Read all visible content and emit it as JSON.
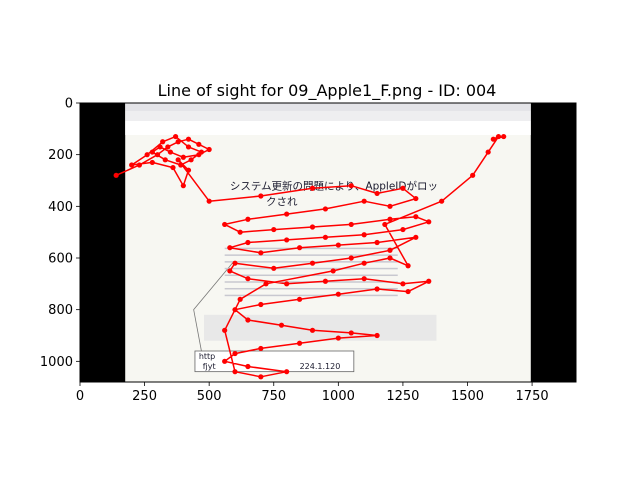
{
  "chart_data": {
    "type": "scatter",
    "title": "Line of sight for 09_Apple1_F.png - ID: 004",
    "xlim": [
      0,
      1920
    ],
    "ylim": [
      1080,
      0
    ],
    "x_ticks": [
      0,
      250,
      500,
      750,
      1000,
      1250,
      1500,
      1750
    ],
    "y_ticks": [
      0,
      200,
      400,
      600,
      800,
      1000
    ],
    "grid": false,
    "background_image": {
      "extent_x": [
        175,
        1745
      ],
      "lines": [
        "システム更新の問題により、AppleIDがロッ",
        "クされ",
        "http",
        "fjyt",
        "224.1.120"
      ]
    },
    "series": [
      {
        "color": "#ff0000",
        "marker": "circle",
        "points": [
          [
            140,
            280
          ],
          [
            230,
            240
          ],
          [
            300,
            200
          ],
          [
            340,
            170
          ],
          [
            380,
            150
          ],
          [
            420,
            140
          ],
          [
            460,
            160
          ],
          [
            500,
            180
          ],
          [
            460,
            200
          ],
          [
            400,
            210
          ],
          [
            350,
            190
          ],
          [
            310,
            170
          ],
          [
            280,
            190
          ],
          [
            330,
            220
          ],
          [
            390,
            240
          ],
          [
            430,
            220
          ],
          [
            470,
            190
          ],
          [
            420,
            170
          ],
          [
            370,
            130
          ],
          [
            320,
            150
          ],
          [
            260,
            200
          ],
          [
            200,
            240
          ],
          [
            280,
            230
          ],
          [
            360,
            250
          ],
          [
            400,
            320
          ],
          [
            420,
            260
          ],
          [
            380,
            220
          ],
          [
            500,
            380
          ],
          [
            700,
            360
          ],
          [
            900,
            330
          ],
          [
            1050,
            320
          ],
          [
            1150,
            350
          ],
          [
            1250,
            330
          ],
          [
            1300,
            370
          ],
          [
            1200,
            400
          ],
          [
            1100,
            380
          ],
          [
            950,
            410
          ],
          [
            800,
            430
          ],
          [
            650,
            450
          ],
          [
            560,
            470
          ],
          [
            620,
            500
          ],
          [
            750,
            490
          ],
          [
            900,
            480
          ],
          [
            1050,
            470
          ],
          [
            1200,
            450
          ],
          [
            1300,
            440
          ],
          [
            1350,
            460
          ],
          [
            1250,
            490
          ],
          [
            1100,
            510
          ],
          [
            950,
            520
          ],
          [
            800,
            530
          ],
          [
            650,
            540
          ],
          [
            580,
            560
          ],
          [
            700,
            580
          ],
          [
            850,
            560
          ],
          [
            1000,
            550
          ],
          [
            1150,
            540
          ],
          [
            1300,
            520
          ],
          [
            1200,
            570
          ],
          [
            1050,
            600
          ],
          [
            900,
            620
          ],
          [
            750,
            640
          ],
          [
            600,
            620
          ],
          [
            580,
            650
          ],
          [
            650,
            680
          ],
          [
            800,
            700
          ],
          [
            950,
            690
          ],
          [
            1100,
            680
          ],
          [
            1250,
            700
          ],
          [
            1350,
            690
          ],
          [
            1270,
            730
          ],
          [
            1150,
            720
          ],
          [
            1000,
            740
          ],
          [
            850,
            760
          ],
          [
            700,
            780
          ],
          [
            600,
            800
          ],
          [
            650,
            840
          ],
          [
            780,
            860
          ],
          [
            900,
            880
          ],
          [
            1050,
            890
          ],
          [
            1150,
            900
          ],
          [
            1000,
            910
          ],
          [
            850,
            930
          ],
          [
            700,
            950
          ],
          [
            600,
            970
          ],
          [
            560,
            1000
          ],
          [
            650,
            1020
          ],
          [
            800,
            1040
          ],
          [
            700,
            1060
          ],
          [
            600,
            1040
          ],
          [
            560,
            880
          ],
          [
            620,
            760
          ],
          [
            720,
            700
          ],
          [
            980,
            650
          ],
          [
            1100,
            620
          ],
          [
            1200,
            600
          ],
          [
            1270,
            630
          ],
          [
            1180,
            470
          ],
          [
            1400,
            380
          ],
          [
            1520,
            280
          ],
          [
            1580,
            190
          ],
          [
            1620,
            130
          ],
          [
            1600,
            140
          ],
          [
            1640,
            130
          ]
        ]
      }
    ]
  }
}
